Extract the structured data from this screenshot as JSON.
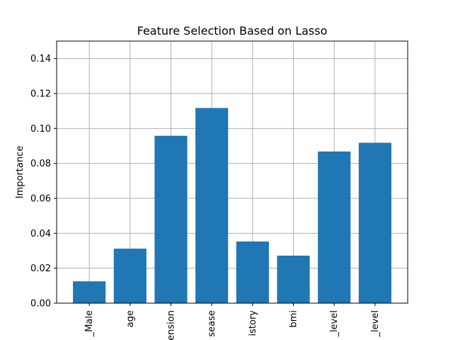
{
  "chart_data": {
    "type": "bar",
    "title": "Feature Selection Based on Lasso",
    "xlabel": "",
    "ylabel": "Importance",
    "categories": [
      "_Male",
      "age",
      "ension",
      "sease",
      "istory",
      "bmi",
      "_level",
      "_level"
    ],
    "values": [
      0.0125,
      0.0312,
      0.0958,
      0.1117,
      0.0353,
      0.0272,
      0.0868,
      0.0918
    ],
    "ylim": [
      0,
      0.15
    ],
    "yticks": [
      0.0,
      0.02,
      0.04,
      0.06,
      0.08,
      0.1,
      0.12,
      0.14
    ],
    "ytick_labels": [
      "0.00",
      "0.02",
      "0.04",
      "0.06",
      "0.08",
      "0.10",
      "0.12",
      "0.14"
    ],
    "grid": true,
    "bar_color": "#1f77b4",
    "grid_color": "#b0b0b0"
  }
}
